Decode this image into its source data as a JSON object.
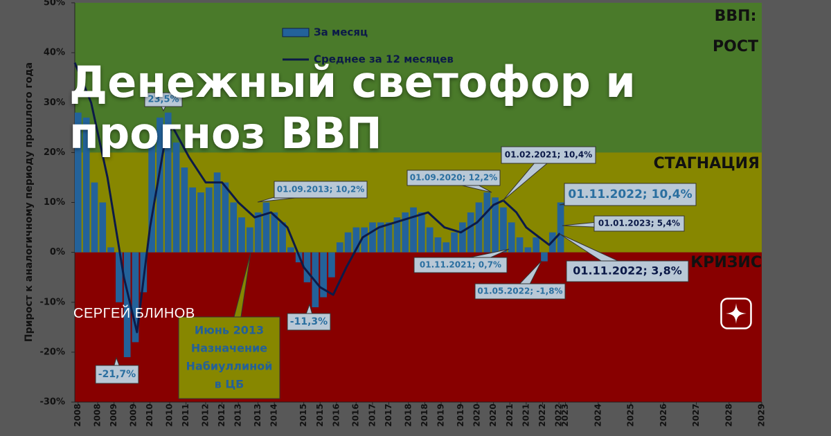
{
  "overlay": {
    "title": "Денежный светофор и прогноз ВВП",
    "author": "СЕРГЕЙ БЛИНОВ"
  },
  "chart_data": {
    "type": "bar",
    "y_label": "Прирост к аналогичному периоду прошлого года",
    "xlim": [
      2008,
      2029
    ],
    "xticks": [
      {
        "value": 2008.1,
        "label": "2008"
      },
      {
        "value": 2008.7,
        "label": "2008"
      },
      {
        "value": 2009.2,
        "label": "2009"
      },
      {
        "value": 2009.8,
        "label": "2009"
      },
      {
        "value": 2010.3,
        "label": "2010"
      },
      {
        "value": 2010.9,
        "label": "2010"
      },
      {
        "value": 2011.4,
        "label": "2011"
      },
      {
        "value": 2012.0,
        "label": "2012"
      },
      {
        "value": 2012.5,
        "label": "2012"
      },
      {
        "value": 2013.0,
        "label": "2013"
      },
      {
        "value": 2013.6,
        "label": "2013"
      },
      {
        "value": 2014.1,
        "label": "2014"
      },
      {
        "value": 2015.0,
        "label": "2015"
      },
      {
        "value": 2015.5,
        "label": "2015"
      },
      {
        "value": 2016.0,
        "label": "2016"
      },
      {
        "value": 2016.6,
        "label": "2016"
      },
      {
        "value": 2017.1,
        "label": "2017"
      },
      {
        "value": 2017.6,
        "label": "2017"
      },
      {
        "value": 2018.2,
        "label": "2018"
      },
      {
        "value": 2018.7,
        "label": "2018"
      },
      {
        "value": 2019.2,
        "label": "2019"
      },
      {
        "value": 2019.8,
        "label": "2019"
      },
      {
        "value": 2020.3,
        "label": "2020"
      },
      {
        "value": 2020.8,
        "label": "2020"
      },
      {
        "value": 2021.3,
        "label": "2021"
      },
      {
        "value": 2021.8,
        "label": "2021"
      },
      {
        "value": 2022.3,
        "label": "2022"
      },
      {
        "value": 2022.8,
        "label": "2022"
      },
      2023,
      2024,
      2025,
      2026,
      2027,
      2028,
      2029
    ],
    "ylim": [
      -30,
      50
    ],
    "yticks": [
      {
        "value": -30,
        "label": "-30%"
      },
      {
        "value": -20,
        "label": "-20%"
      },
      {
        "value": -10,
        "label": "-10%"
      },
      {
        "value": 0,
        "label": "0%"
      },
      {
        "value": 10,
        "label": "10%"
      },
      {
        "value": 20,
        "label": "20%"
      },
      {
        "value": 30,
        "label": "30%"
      },
      {
        "value": 40,
        "label": "40%"
      },
      {
        "value": 50,
        "label": "50%"
      }
    ],
    "zones": [
      {
        "from": 20,
        "to": 50,
        "color": "#4a7a2a",
        "label": [
          "ВВП:",
          "РОСТ"
        ]
      },
      {
        "from": 0,
        "to": 20,
        "color": "#878700",
        "label": [
          "СТАГНАЦИЯ"
        ]
      },
      {
        "from": -30,
        "to": 0,
        "color": "#880000",
        "label": [
          "КРИЗИС"
        ]
      }
    ],
    "series": [
      {
        "name": "За месяц",
        "type": "bar",
        "color": "#23629a",
        "x": [
          2008.0,
          2008.25,
          2008.5,
          2008.75,
          2009.0,
          2009.25,
          2009.5,
          2009.75,
          2010.0,
          2010.25,
          2010.5,
          2010.75,
          2011.0,
          2011.25,
          2011.5,
          2011.75,
          2012.0,
          2012.25,
          2012.5,
          2012.75,
          2013.0,
          2013.25,
          2013.5,
          2013.75,
          2014.0,
          2014.25,
          2014.5,
          2014.75,
          2015.0,
          2015.25,
          2015.5,
          2015.75,
          2016.0,
          2016.25,
          2016.5,
          2016.75,
          2017.0,
          2017.25,
          2017.5,
          2017.75,
          2018.0,
          2018.25,
          2018.5,
          2018.75,
          2019.0,
          2019.25,
          2019.5,
          2019.75,
          2020.0,
          2020.25,
          2020.5,
          2020.75,
          2021.0,
          2021.25,
          2021.5,
          2021.75,
          2022.0,
          2022.25,
          2022.5,
          2022.75
        ],
        "values": [
          28,
          27,
          14,
          10,
          1,
          -10,
          -21,
          -18,
          -8,
          22,
          27,
          28,
          22,
          17,
          13,
          12,
          13,
          16,
          14,
          10,
          7,
          5,
          8,
          10,
          8,
          6,
          1,
          -2,
          -6,
          -11,
          -9,
          -5,
          2,
          4,
          5,
          5,
          6,
          6,
          6,
          7,
          8,
          9,
          8,
          5,
          3,
          2,
          4,
          6,
          8,
          10,
          12,
          11,
          9,
          6,
          3,
          1,
          3,
          -1.8,
          4,
          10
        ]
      },
      {
        "name": "Среднее за 12 месяцев",
        "type": "line",
        "color": "#0c1a48",
        "x": [
          2008.0,
          2008.5,
          2009.0,
          2009.5,
          2009.9,
          2010.3,
          2010.8,
          2011.0,
          2011.5,
          2012.0,
          2012.5,
          2013.0,
          2013.5,
          2014.0,
          2014.5,
          2015.0,
          2015.5,
          2015.9,
          2016.3,
          2016.8,
          2017.3,
          2017.8,
          2018.3,
          2018.8,
          2019.3,
          2019.8,
          2020.3,
          2020.8,
          2021.1,
          2021.5,
          2021.8,
          2022.2,
          2022.5,
          2022.83
        ],
        "values": [
          38,
          30,
          15,
          -5,
          -16,
          5,
          24,
          25,
          19,
          14,
          14,
          10,
          7,
          8,
          5,
          -3,
          -7,
          -8.5,
          -3,
          3,
          5,
          6,
          7,
          8,
          5,
          4,
          6,
          9.5,
          10.4,
          8,
          5,
          3,
          1.5,
          3.8
        ]
      }
    ],
    "annotations": [
      {
        "lines": [
          "23,5%"
        ]
      },
      {
        "lines": [
          "-21,7%"
        ]
      },
      {
        "lines": [
          "Июнь 2013",
          "Назначение",
          "Набиуллиной",
          "в ЦБ"
        ]
      },
      {
        "lines": [
          "-11,3%"
        ]
      },
      {
        "lines": [
          "01.09.2013; 10,2%"
        ]
      },
      {
        "lines": [
          "01.09.2020; 12,2%"
        ]
      },
      {
        "lines": [
          "01.02.2021; 10,4%"
        ]
      },
      {
        "lines": [
          "01.11.2022; 10,4%"
        ]
      },
      {
        "lines": [
          "01.01.2023; 5,4%"
        ]
      },
      {
        "lines": [
          "01.11.2021; 0,7%"
        ]
      },
      {
        "lines": [
          "01.05.2022; -1,8%"
        ]
      },
      {
        "lines": [
          "01.11.2022; 3,8%"
        ]
      }
    ]
  }
}
